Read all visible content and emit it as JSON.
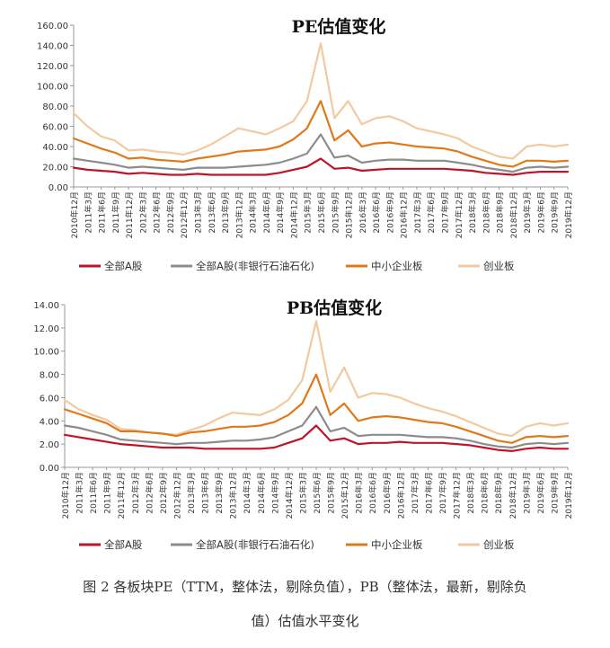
{
  "legend_labels": [
    "全部A股",
    "全部A股(非银行石油石化)",
    "中小企业板",
    "创业板"
  ],
  "colors": {
    "all_a": "#c0142b",
    "all_a_ex": "#8c8c8c",
    "sme": "#e0791a",
    "chinext": "#f2c9a0"
  },
  "x_tick_labels": [
    "2010年12月",
    "2011年3月",
    "2011年6月",
    "2011年9月",
    "2011年12月",
    "2012年3月",
    "2012年6月",
    "2012年9月",
    "2012年12月",
    "2013年3月",
    "2013年6月",
    "2013年9月",
    "2013年12月",
    "2014年3月",
    "2014年6月",
    "2014年9月",
    "2014年12月",
    "2015年3月",
    "2015年6月",
    "2015年9月",
    "2015年12月",
    "2016年3月",
    "2016年6月",
    "2016年9月",
    "2016年12月",
    "2017年3月",
    "2017年6月",
    "2017年9月",
    "2017年12月",
    "2018年3月",
    "2018年6月",
    "2018年9月",
    "2018年12月",
    "2019年3月",
    "2019年6月",
    "2019年9月",
    "2019年12月"
  ],
  "caption": {
    "line1": "图 2 各板块PE（TTM，整体法，剔除负值），PB（整体法，最新，剔除负",
    "line2": "值）估值水平变化"
  },
  "chart_data": [
    {
      "type": "line",
      "title": "PE估值变化",
      "ylim": [
        0,
        160
      ],
      "yticks": [
        "0.00",
        "20.00",
        "40.00",
        "60.00",
        "80.00",
        "100.00",
        "120.00",
        "140.00",
        "160.00"
      ],
      "legend_position": "bottom",
      "series": [
        {
          "name": "全部A股",
          "color": "#c0142b",
          "values": [
            19,
            17,
            16,
            15,
            13,
            14,
            13,
            12,
            12,
            13,
            12,
            12,
            12,
            12,
            12,
            14,
            17,
            20,
            28,
            18,
            19,
            16,
            17,
            18,
            18,
            18,
            18,
            18,
            17,
            16,
            14,
            13,
            12,
            14,
            15,
            15,
            15
          ]
        },
        {
          "name": "全部A股(非银行石油石化)",
          "color": "#8c8c8c",
          "values": [
            28,
            26,
            24,
            22,
            19,
            20,
            19,
            18,
            17,
            19,
            19,
            19,
            20,
            21,
            22,
            24,
            28,
            33,
            52,
            29,
            31,
            24,
            26,
            27,
            27,
            26,
            26,
            26,
            24,
            22,
            19,
            17,
            15,
            19,
            20,
            19,
            20
          ]
        },
        {
          "name": "中小企业板",
          "color": "#e0791a",
          "values": [
            48,
            43,
            38,
            34,
            28,
            29,
            27,
            26,
            25,
            28,
            30,
            32,
            35,
            36,
            37,
            40,
            47,
            58,
            85,
            46,
            56,
            40,
            43,
            44,
            42,
            40,
            39,
            38,
            35,
            30,
            26,
            22,
            20,
            26,
            26,
            25,
            26
          ]
        },
        {
          "name": "创业板",
          "color": "#f2c9a0",
          "values": [
            73,
            60,
            50,
            46,
            36,
            37,
            35,
            34,
            32,
            36,
            42,
            50,
            58,
            55,
            52,
            58,
            65,
            85,
            142,
            68,
            85,
            62,
            68,
            70,
            65,
            58,
            55,
            52,
            48,
            40,
            35,
            30,
            28,
            40,
            42,
            40,
            42
          ]
        }
      ]
    },
    {
      "type": "line",
      "title": "PB估值变化",
      "ylim": [
        0,
        14
      ],
      "yticks": [
        "0.00",
        "2.00",
        "4.00",
        "6.00",
        "8.00",
        "10.00",
        "12.00",
        "14.00"
      ],
      "legend_position": "bottom",
      "series": [
        {
          "name": "全部A股",
          "color": "#c0142b",
          "values": [
            2.8,
            2.6,
            2.4,
            2.2,
            2.0,
            1.9,
            1.8,
            1.7,
            1.7,
            1.7,
            1.6,
            1.6,
            1.6,
            1.6,
            1.6,
            1.7,
            2.1,
            2.5,
            3.6,
            2.3,
            2.5,
            2.0,
            2.1,
            2.1,
            2.2,
            2.1,
            2.1,
            2.1,
            2.0,
            1.9,
            1.7,
            1.5,
            1.4,
            1.6,
            1.7,
            1.6,
            1.6
          ]
        },
        {
          "name": "全部A股(非银行石油石化)",
          "color": "#8c8c8c",
          "values": [
            3.6,
            3.4,
            3.1,
            2.8,
            2.4,
            2.3,
            2.2,
            2.1,
            2.0,
            2.1,
            2.1,
            2.2,
            2.3,
            2.3,
            2.4,
            2.6,
            3.1,
            3.6,
            5.2,
            3.1,
            3.4,
            2.7,
            2.8,
            2.8,
            2.8,
            2.7,
            2.6,
            2.6,
            2.5,
            2.3,
            2.0,
            1.8,
            1.7,
            2.0,
            2.1,
            2.0,
            2.1
          ]
        },
        {
          "name": "中小企业板",
          "color": "#e0791a",
          "values": [
            5.0,
            4.6,
            4.2,
            3.8,
            3.1,
            3.1,
            3.0,
            2.9,
            2.7,
            3.0,
            3.1,
            3.3,
            3.5,
            3.5,
            3.6,
            3.9,
            4.5,
            5.5,
            8.0,
            4.5,
            5.5,
            4.0,
            4.3,
            4.4,
            4.3,
            4.1,
            3.9,
            3.8,
            3.5,
            3.1,
            2.7,
            2.3,
            2.1,
            2.6,
            2.7,
            2.6,
            2.7
          ]
        },
        {
          "name": "创业板",
          "color": "#f2c9a0",
          "values": [
            5.8,
            5.0,
            4.5,
            4.1,
            3.3,
            3.2,
            3.0,
            2.9,
            2.8,
            3.2,
            3.6,
            4.2,
            4.7,
            4.6,
            4.5,
            5.0,
            5.8,
            7.5,
            12.6,
            6.5,
            8.6,
            6.0,
            6.4,
            6.3,
            6.0,
            5.5,
            5.1,
            4.8,
            4.4,
            3.9,
            3.4,
            2.9,
            2.7,
            3.5,
            3.8,
            3.6,
            3.8
          ]
        }
      ]
    }
  ]
}
